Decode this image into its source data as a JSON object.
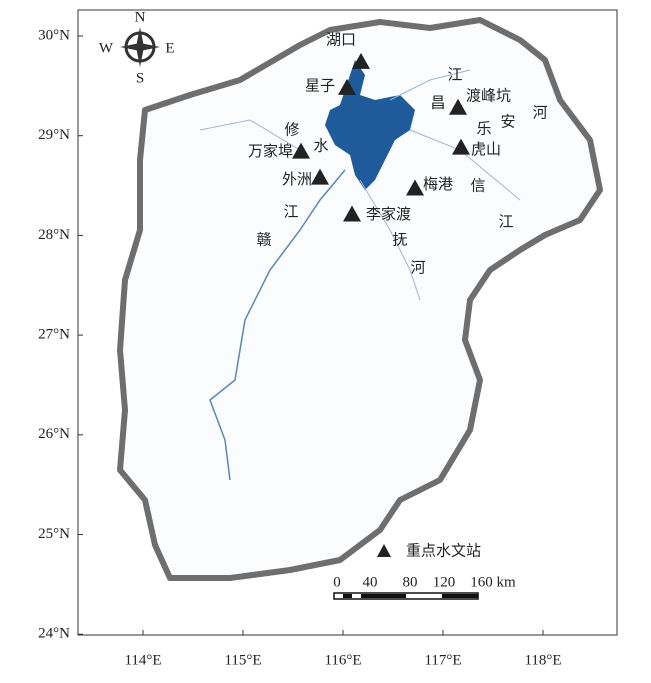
{
  "map": {
    "xticks": [
      {
        "value": 114,
        "label": "114°E"
      },
      {
        "value": 115,
        "label": "115°E"
      },
      {
        "value": 116,
        "label": "116°E"
      },
      {
        "value": 117,
        "label": "117°E"
      },
      {
        "value": 118,
        "label": "118°E"
      }
    ],
    "yticks": [
      {
        "value": 24,
        "label": "24°N"
      },
      {
        "value": 25,
        "label": "25°N"
      },
      {
        "value": 26,
        "label": "26°N"
      },
      {
        "value": 27,
        "label": "27°N"
      },
      {
        "value": 28,
        "label": "28°N"
      },
      {
        "value": 29,
        "label": "29°N"
      },
      {
        "value": 30,
        "label": "30°N"
      }
    ],
    "compass": {
      "n": "N",
      "s": "S",
      "w": "W",
      "e": "E"
    },
    "stations": [
      {
        "name": "湖口",
        "lon": 116.18,
        "lat": 29.74
      },
      {
        "name": "星子",
        "lon": 116.04,
        "lat": 29.48
      },
      {
        "name": "渡峰坑",
        "lon": 117.15,
        "lat": 29.28
      },
      {
        "name": "虎山",
        "lon": 117.18,
        "lat": 28.88
      },
      {
        "name": "万家埠",
        "lon": 115.58,
        "lat": 28.84
      },
      {
        "name": "外洲",
        "lon": 115.77,
        "lat": 28.58
      },
      {
        "name": "梅港",
        "lon": 116.72,
        "lat": 28.47
      },
      {
        "name": "李家渡",
        "lon": 116.09,
        "lat": 28.21
      }
    ],
    "river_labels": [
      [
        "江",
        "昌"
      ],
      [
        "乐",
        "安",
        "河"
      ],
      [
        "信",
        "江"
      ],
      [
        "修",
        "水"
      ],
      [
        "江",
        "赣"
      ],
      [
        "抚",
        "河"
      ]
    ],
    "legend": "重点水文站",
    "scale_labels": [
      "0",
      "40",
      "80",
      "120",
      "160 km"
    ]
  }
}
